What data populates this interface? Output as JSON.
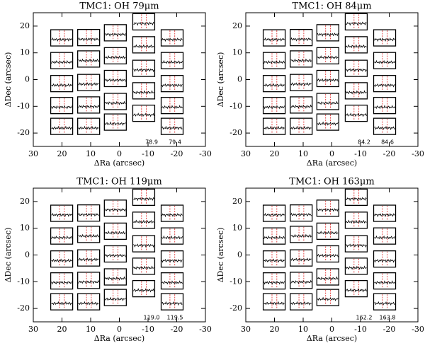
{
  "chart_data": [
    {
      "type": "spectral-map",
      "title": "TMC1: OH 79μm",
      "xlabel": "ΔRa (arcsec)",
      "ylabel": "ΔDec (arcsec)",
      "xlim": [
        30,
        -30
      ],
      "ylim": [
        -25,
        25
      ],
      "xticks": [
        30,
        20,
        10,
        0,
        -10,
        -20,
        -30
      ],
      "yticks": [
        -20,
        -10,
        0,
        10,
        20
      ],
      "spaxels": {
        "x": [
          20.1,
          20.1,
          20.1,
          20.1,
          20.1,
          10.7,
          10.7,
          10.7,
          10.7,
          10.7,
          1.4,
          1.4,
          1.4,
          1.4,
          1.4,
          -8.5,
          -8.5,
          -8.5,
          -8.5,
          -8.5,
          -18.4,
          -18.4,
          -18.4,
          -18.4,
          -18.4
        ],
        "y": [
          15.6,
          7.1,
          -1.5,
          -9.7,
          -17.5,
          15.7,
          7.7,
          -1.1,
          -9.5,
          -17.5,
          17.5,
          8.9,
          0.4,
          -8.2,
          -15.9,
          21.6,
          13.0,
          4.2,
          -4.2,
          -12.6,
          15.6,
          7.1,
          -1.5,
          -9.7,
          -17.5
        ]
      },
      "annotations": [
        "78.9",
        "79.4"
      ]
    },
    {
      "type": "spectral-map",
      "title": "TMC1: OH 84μm",
      "xlabel": "ΔRa (arcsec)",
      "ylabel": "ΔDec (arcsec)",
      "xlim": [
        30,
        -30
      ],
      "ylim": [
        -25,
        25
      ],
      "xticks": [
        30,
        20,
        10,
        0,
        -10,
        -20,
        -30
      ],
      "yticks": [
        -20,
        -10,
        0,
        10,
        20
      ],
      "spaxels": {
        "x": [
          20.1,
          20.1,
          20.1,
          20.1,
          20.1,
          10.7,
          10.7,
          10.7,
          10.7,
          10.7,
          1.4,
          1.4,
          1.4,
          1.4,
          1.4,
          -8.5,
          -8.5,
          -8.5,
          -8.5,
          -8.5,
          -18.4,
          -18.4,
          -18.4,
          -18.4,
          -18.4
        ],
        "y": [
          15.6,
          7.1,
          -1.5,
          -9.7,
          -17.5,
          15.7,
          7.7,
          -1.1,
          -9.5,
          -17.5,
          17.5,
          8.9,
          0.4,
          -8.2,
          -15.9,
          21.6,
          13.0,
          4.2,
          -4.2,
          -12.6,
          15.6,
          7.1,
          -1.5,
          -9.7,
          -17.5
        ]
      },
      "annotations": [
        "84.2",
        "84.6"
      ]
    },
    {
      "type": "spectral-map",
      "title": "TMC1: OH 119μm",
      "xlabel": "ΔRa (arcsec)",
      "ylabel": "ΔDec (arcsec)",
      "xlim": [
        30,
        -30
      ],
      "ylim": [
        -25,
        25
      ],
      "xticks": [
        30,
        20,
        10,
        0,
        -10,
        -20,
        -30
      ],
      "yticks": [
        -20,
        -10,
        0,
        10,
        20
      ],
      "spaxels": {
        "x": [
          20.1,
          20.1,
          20.1,
          20.1,
          20.1,
          10.7,
          10.7,
          10.7,
          10.7,
          10.7,
          1.4,
          1.4,
          1.4,
          1.4,
          1.4,
          -8.5,
          -8.5,
          -8.5,
          -8.5,
          -8.5,
          -18.4,
          -18.4,
          -18.4,
          -18.4,
          -18.4
        ],
        "y": [
          15.6,
          7.1,
          -1.5,
          -9.7,
          -17.5,
          15.7,
          7.7,
          -1.1,
          -9.5,
          -17.5,
          17.5,
          8.9,
          0.4,
          -8.2,
          -15.9,
          21.6,
          13.0,
          4.2,
          -4.2,
          -12.6,
          15.6,
          7.1,
          -1.5,
          -9.7,
          -17.5
        ]
      },
      "annotations": [
        "119.0",
        "119.5"
      ]
    },
    {
      "type": "spectral-map",
      "title": "TMC1: OH 163μm",
      "xlabel": "ΔRa (arcsec)",
      "ylabel": "ΔDec (arcsec)",
      "xlim": [
        30,
        -30
      ],
      "ylim": [
        -25,
        25
      ],
      "xticks": [
        30,
        20,
        10,
        0,
        -10,
        -20,
        -30
      ],
      "yticks": [
        -20,
        -10,
        0,
        10,
        20
      ],
      "spaxels": {
        "x": [
          20.1,
          20.1,
          20.1,
          20.1,
          20.1,
          10.7,
          10.7,
          10.7,
          10.7,
          10.7,
          1.4,
          1.4,
          1.4,
          1.4,
          1.4,
          -8.5,
          -8.5,
          -8.5,
          -8.5,
          -8.5,
          -18.4,
          -18.4,
          -18.4,
          -18.4,
          -18.4
        ],
        "y": [
          15.6,
          7.1,
          -1.5,
          -9.7,
          -17.5,
          15.7,
          7.7,
          -1.1,
          -9.5,
          -17.5,
          17.5,
          8.9,
          0.4,
          -8.2,
          -15.9,
          21.6,
          13.0,
          4.2,
          -4.2,
          -12.6,
          15.6,
          7.1,
          -1.5,
          -9.7,
          -17.5
        ]
      },
      "annotations": [
        "162.2",
        "163.8"
      ]
    }
  ]
}
